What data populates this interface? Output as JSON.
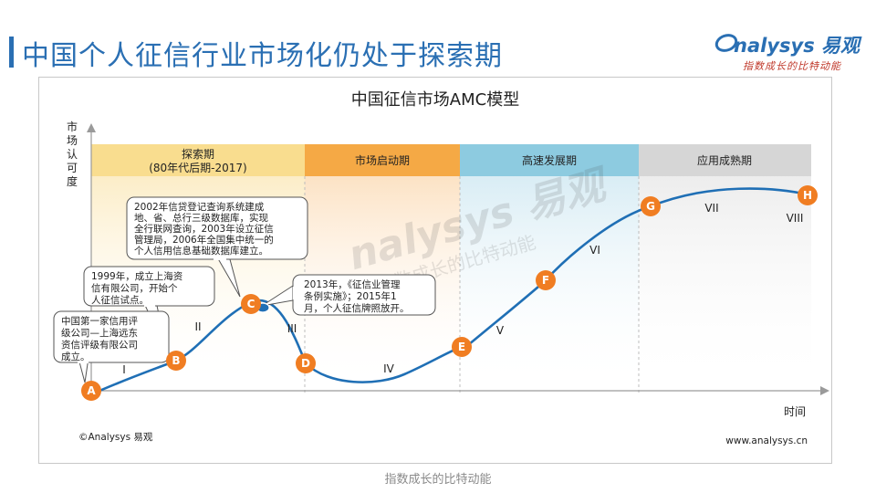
{
  "page": {
    "title": "中国个人征信行业市场化仍处于探索期",
    "footer": "指数成长的比特动能"
  },
  "logo": {
    "brand": "nalysys 易观",
    "tagline": "指数成长的比特动能"
  },
  "diagram": {
    "title": "中国征信市场AMC模型",
    "y_axis_label": [
      "市",
      "场",
      "认",
      "可",
      "度"
    ],
    "x_axis_label": "时间",
    "stages": [
      {
        "label": "探索期",
        "sublabel": "(80年代后期-2017)",
        "color": "#f9dd8f"
      },
      {
        "label": "市场启动期",
        "sublabel": "",
        "color": "#f5a945"
      },
      {
        "label": "高速发展期",
        "sublabel": "",
        "color": "#8dcbe0"
      },
      {
        "label": "应用成熟期",
        "sublabel": "",
        "color": "#d6d6d6"
      }
    ],
    "points": [
      "A",
      "B",
      "C",
      "D",
      "E",
      "F",
      "G",
      "H"
    ],
    "phases": [
      "I",
      "II",
      "III",
      "IV",
      "V",
      "VI",
      "VII",
      "VIII"
    ],
    "callouts": [
      {
        "lines": [
          "中国第一家信用评",
          "级公司—上海远东",
          "资信评级有限公司",
          "成立。"
        ]
      },
      {
        "lines": [
          "1999年，成立上海资",
          "信有限公司，开始个",
          "人征信试点。"
        ]
      },
      {
        "lines": [
          "2002年信贷登记查询系统建成",
          "地、省、总行三级数据库，实现",
          "全行联网查询，2003年设立征信",
          "管理局，2006年全国集中统一的",
          "个人信用信息基础数据库建立。"
        ]
      },
      {
        "lines": [
          "2013年，《征信业管理",
          "条例实施》；2015年1",
          "月，个人征信牌照放开。"
        ]
      }
    ],
    "watermark": "nalysys 易观",
    "watermark_sub": "指数成长的比特动能",
    "copyright": "©Analysys 易观",
    "website": "www.analysys.cn",
    "accent_color": "#f07d22",
    "curve_color": "#1f6fb5"
  }
}
